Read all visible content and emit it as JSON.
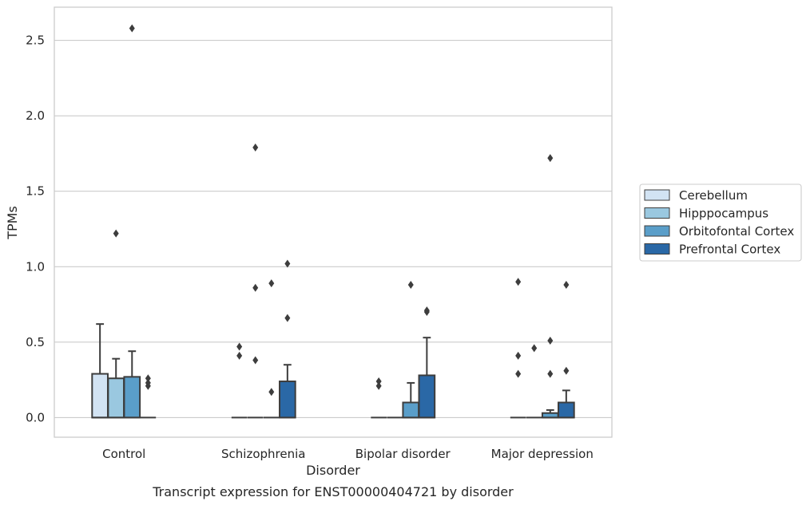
{
  "chart_data": {
    "type": "boxplot",
    "caption": "Transcript expression for ENST00000404721 by disorder",
    "xlabel": "Disorder",
    "ylabel": "TPMs",
    "ylim": [
      -0.13,
      2.72
    ],
    "yticks": [
      0.0,
      0.5,
      1.0,
      1.5,
      2.0,
      2.5
    ],
    "ytick_labels": [
      "0.0",
      "0.5",
      "1.0",
      "1.5",
      "2.0",
      "2.5"
    ],
    "grid": "horizontal",
    "legend_position": "right",
    "categories": [
      "Control",
      "Schizophrenia",
      "Bipolar disorder",
      "Major depression"
    ],
    "series": [
      {
        "name": "Cerebellum",
        "color": "#d2e3f3",
        "boxes": [
          {
            "q1": 0.0,
            "median": 0.0,
            "q3": 0.29,
            "whisker_low": 0.0,
            "whisker_high": 0.62,
            "outliers": []
          },
          {
            "q1": 0.0,
            "median": 0.0,
            "q3": 0.0,
            "whisker_low": 0.0,
            "whisker_high": 0.0,
            "outliers": [
              0.41,
              0.47
            ]
          },
          {
            "q1": 0.0,
            "median": 0.0,
            "q3": 0.0,
            "whisker_low": 0.0,
            "whisker_high": 0.0,
            "outliers": [
              0.21,
              0.24
            ]
          },
          {
            "q1": 0.0,
            "median": 0.0,
            "q3": 0.0,
            "whisker_low": 0.0,
            "whisker_high": 0.0,
            "outliers": [
              0.29,
              0.41,
              0.9
            ]
          }
        ]
      },
      {
        "name": "Hipppocampus",
        "color": "#9ac8e0",
        "boxes": [
          {
            "q1": 0.0,
            "median": 0.0,
            "q3": 0.26,
            "whisker_low": 0.0,
            "whisker_high": 0.39,
            "outliers": [
              1.22
            ]
          },
          {
            "q1": 0.0,
            "median": 0.0,
            "q3": 0.0,
            "whisker_low": 0.0,
            "whisker_high": 0.0,
            "outliers": [
              0.38,
              0.86,
              1.79
            ]
          },
          {
            "q1": 0.0,
            "median": 0.0,
            "q3": 0.0,
            "whisker_low": 0.0,
            "whisker_high": 0.0,
            "outliers": []
          },
          {
            "q1": 0.0,
            "median": 0.0,
            "q3": 0.0,
            "whisker_low": 0.0,
            "whisker_high": 0.0,
            "outliers": [
              0.46
            ]
          }
        ]
      },
      {
        "name": "Orbitofontal Cortex",
        "color": "#5a9ec9",
        "boxes": [
          {
            "q1": 0.0,
            "median": 0.0,
            "q3": 0.27,
            "whisker_low": 0.0,
            "whisker_high": 0.44,
            "outliers": [
              2.58
            ]
          },
          {
            "q1": 0.0,
            "median": 0.0,
            "q3": 0.0,
            "whisker_low": 0.0,
            "whisker_high": 0.0,
            "outliers": [
              0.17,
              0.89
            ]
          },
          {
            "q1": 0.0,
            "median": 0.0,
            "q3": 0.1,
            "whisker_low": 0.0,
            "whisker_high": 0.23,
            "outliers": [
              0.88
            ]
          },
          {
            "q1": 0.0,
            "median": 0.0,
            "q3": 0.03,
            "whisker_low": 0.0,
            "whisker_high": 0.05,
            "outliers": [
              0.29,
              0.51,
              1.72
            ]
          }
        ]
      },
      {
        "name": "Prefrontal Cortex",
        "color": "#2a68a6",
        "boxes": [
          {
            "q1": 0.0,
            "median": 0.0,
            "q3": 0.0,
            "whisker_low": 0.0,
            "whisker_high": 0.0,
            "outliers": [
              0.21,
              0.23,
              0.26
            ]
          },
          {
            "q1": 0.0,
            "median": 0.0,
            "q3": 0.24,
            "whisker_low": 0.0,
            "whisker_high": 0.35,
            "outliers": [
              0.66,
              1.02
            ]
          },
          {
            "q1": 0.0,
            "median": 0.0,
            "q3": 0.28,
            "whisker_low": 0.0,
            "whisker_high": 0.53,
            "outliers": [
              0.7,
              0.71
            ]
          },
          {
            "q1": 0.0,
            "median": 0.0,
            "q3": 0.1,
            "whisker_low": 0.0,
            "whisker_high": 0.18,
            "outliers": [
              0.31,
              0.88
            ]
          }
        ]
      }
    ]
  }
}
